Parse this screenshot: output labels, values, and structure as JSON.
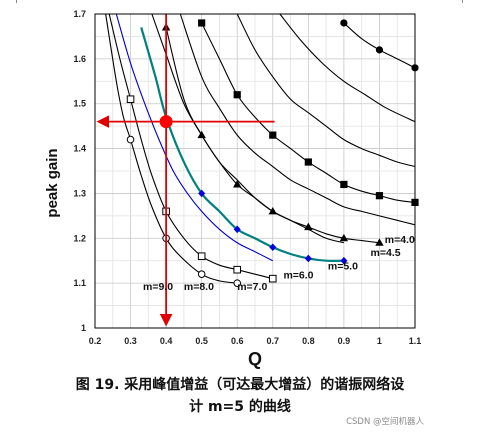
{
  "chart_data": {
    "type": "line",
    "xlabel": "Q",
    "ylabel": "peak gain",
    "xlim": [
      0.2,
      1.1
    ],
    "ylim": [
      1.0,
      1.7
    ],
    "xticks": [
      "0.2",
      "0.3",
      "0.4",
      "0.5",
      "0.6",
      "0.7",
      "0.8",
      "0.9",
      "1",
      "1.1"
    ],
    "yticks": [
      "1",
      "1.1",
      "1.2",
      "1.3",
      "1.4",
      "1.5",
      "1.6",
      "1.7"
    ],
    "grid": true,
    "series": [
      {
        "name": "m=9.0",
        "color": "#000000",
        "marker": "circle-open",
        "labeled_x": [
          0.3,
          0.4,
          0.5,
          0.6
        ],
        "x": [
          0.23,
          0.26,
          0.28,
          0.3,
          0.33,
          0.36,
          0.4,
          0.44,
          0.5,
          0.55,
          0.6
        ],
        "y": [
          1.7,
          1.55,
          1.47,
          1.42,
          1.34,
          1.27,
          1.2,
          1.16,
          1.12,
          1.105,
          1.1
        ]
      },
      {
        "name": "m=8.0",
        "color": "#000000",
        "marker": "square-open",
        "labeled_x": [
          0.3,
          0.4,
          0.5,
          0.6,
          0.7
        ],
        "x": [
          0.24,
          0.27,
          0.3,
          0.33,
          0.36,
          0.4,
          0.45,
          0.5,
          0.55,
          0.6,
          0.65,
          0.7
        ],
        "y": [
          1.7,
          1.6,
          1.51,
          1.42,
          1.34,
          1.26,
          1.2,
          1.16,
          1.14,
          1.13,
          1.12,
          1.11
        ]
      },
      {
        "name": "m=7.0",
        "color": "#0000cc",
        "marker": "none",
        "labeled_x": [],
        "x": [
          0.26,
          0.3,
          0.34,
          0.38,
          0.42,
          0.46,
          0.5,
          0.55,
          0.6,
          0.65,
          0.7
        ],
        "y": [
          1.7,
          1.59,
          1.5,
          1.42,
          1.35,
          1.3,
          1.26,
          1.22,
          1.19,
          1.17,
          1.15
        ]
      },
      {
        "name": "m=6.0",
        "color": "#008080",
        "marker": "diamond",
        "labeled_x": [
          0.5,
          0.6,
          0.7,
          0.8,
          0.9
        ],
        "x": [
          0.33,
          0.37,
          0.4,
          0.45,
          0.5,
          0.55,
          0.6,
          0.65,
          0.7,
          0.75,
          0.8,
          0.85,
          0.9
        ],
        "y": [
          1.67,
          1.56,
          1.47,
          1.37,
          1.3,
          1.26,
          1.22,
          1.2,
          1.18,
          1.165,
          1.155,
          1.15,
          1.15
        ]
      },
      {
        "name": "m=5.0",
        "color": "#000000",
        "marker": "none",
        "labeled_x": [],
        "x": [
          0.36,
          0.4,
          0.45,
          0.5,
          0.55,
          0.6,
          0.65,
          0.7,
          0.75,
          0.8,
          0.85,
          0.9
        ],
        "y": [
          1.7,
          1.61,
          1.5,
          1.43,
          1.37,
          1.33,
          1.29,
          1.26,
          1.24,
          1.22,
          1.2,
          1.19
        ]
      },
      {
        "name": "m=4.5",
        "color": "#000000",
        "marker": "triangle",
        "labeled_x": [
          0.4,
          0.5,
          0.6,
          0.7,
          0.8,
          0.9,
          1.0
        ],
        "x": [
          0.4,
          0.45,
          0.5,
          0.55,
          0.6,
          0.65,
          0.7,
          0.75,
          0.8,
          0.85,
          0.9,
          0.95,
          1.0
        ],
        "y": [
          1.67,
          1.51,
          1.43,
          1.37,
          1.32,
          1.29,
          1.26,
          1.24,
          1.225,
          1.21,
          1.2,
          1.195,
          1.19
        ]
      },
      {
        "name": "m=4.0",
        "color": "#000000",
        "marker": "none",
        "labeled_x": [],
        "x": [
          0.44,
          0.5,
          0.55,
          0.6,
          0.65,
          0.7,
          0.75,
          0.8,
          0.85,
          0.9,
          0.95,
          1.0,
          1.05,
          1.1
        ],
        "y": [
          1.7,
          1.56,
          1.49,
          1.43,
          1.39,
          1.36,
          1.33,
          1.31,
          1.29,
          1.27,
          1.26,
          1.25,
          1.24,
          1.23
        ]
      },
      {
        "name": "",
        "color": "#000000",
        "marker": "square",
        "labeled_x": [
          0.5,
          0.6,
          0.7,
          0.8,
          0.9,
          1.0,
          1.1
        ],
        "x": [
          0.5,
          0.55,
          0.6,
          0.65,
          0.7,
          0.75,
          0.8,
          0.85,
          0.9,
          0.95,
          1.0,
          1.05,
          1.1
        ],
        "y": [
          1.68,
          1.6,
          1.52,
          1.47,
          1.43,
          1.4,
          1.37,
          1.345,
          1.32,
          1.305,
          1.295,
          1.285,
          1.28
        ]
      },
      {
        "name": "",
        "color": "#000000",
        "marker": "none",
        "labeled_x": [],
        "x": [
          0.6,
          0.65,
          0.7,
          0.75,
          0.8,
          0.85,
          0.9,
          0.95,
          1.0,
          1.05,
          1.1
        ],
        "y": [
          1.7,
          1.62,
          1.56,
          1.51,
          1.48,
          1.45,
          1.42,
          1.4,
          1.385,
          1.37,
          1.36
        ]
      },
      {
        "name": "",
        "color": "#000000",
        "marker": "none",
        "labeled_x": [],
        "x": [
          0.72,
          0.78,
          0.84,
          0.9,
          0.96,
          1.02,
          1.1
        ],
        "y": [
          1.7,
          1.64,
          1.59,
          1.55,
          1.52,
          1.49,
          1.46
        ]
      },
      {
        "name": "",
        "color": "#000000",
        "marker": "circle",
        "labeled_x": [
          0.9,
          1.0,
          1.1
        ],
        "x": [
          0.9,
          0.95,
          1.0,
          1.05,
          1.1
        ],
        "y": [
          1.68,
          1.645,
          1.62,
          1.6,
          1.58
        ]
      }
    ],
    "curve_labels": [
      {
        "text": "m=9.0",
        "x": 0.335,
        "y": 1.085
      },
      {
        "text": "m=8.0",
        "x": 0.45,
        "y": 1.085
      },
      {
        "text": "m=7.0",
        "x": 0.6,
        "y": 1.085
      },
      {
        "text": "m=6.0",
        "x": 0.73,
        "y": 1.11
      },
      {
        "text": "m=5.0",
        "x": 0.855,
        "y": 1.13
      },
      {
        "text": "m=4.5",
        "x": 0.975,
        "y": 1.16
      },
      {
        "text": "m=4.0",
        "x": 1.015,
        "y": 1.19
      }
    ],
    "design_point": {
      "x": 0.4,
      "y": 1.46,
      "color": "#ff0000"
    },
    "guide_lines": {
      "horizontal": {
        "y": 1.46,
        "from_x": 0.705,
        "to_x": 0.2
      },
      "vertical": {
        "x": 0.4,
        "from_y": 1.7,
        "to_y": 1.0
      }
    }
  },
  "caption": {
    "line1": "图 19.    采用峰值增益（可达最大增益）的谐振网络设",
    "line2": "计 m=5 的曲线"
  },
  "watermark": "CSDN @空间机器人"
}
